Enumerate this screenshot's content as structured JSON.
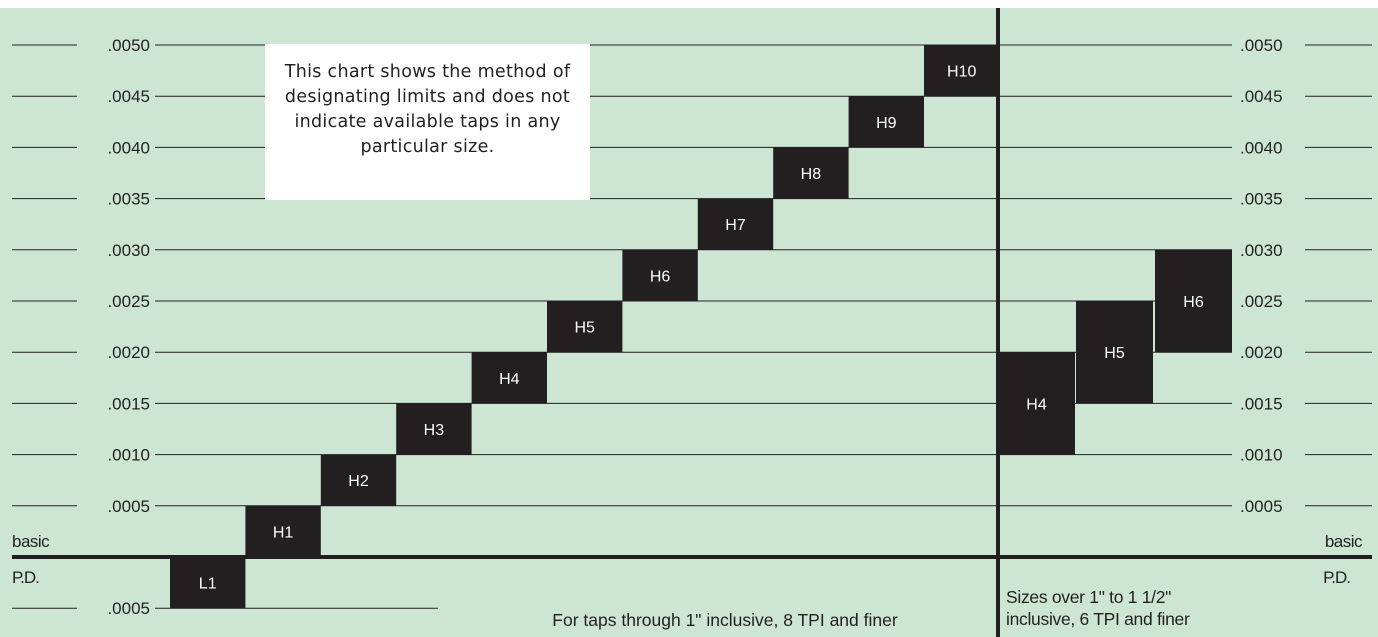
{
  "chart_data": {
    "type": "bar",
    "title": "",
    "note": "This chart shows the method of designating limits and does not indicate available taps in any particular size.",
    "ytick_labels": [
      ".0050",
      ".0045",
      ".0040",
      ".0035",
      ".0030",
      ".0025",
      ".0020",
      ".0015",
      ".0010",
      ".0005"
    ],
    "below_basic_label": ".0005",
    "basic_label_top": "basic",
    "basic_label_bottom": "P.D.",
    "ylim": [
      -0.0005,
      0.005
    ],
    "panels": [
      {
        "caption": "For taps through 1\" inclusive, 8 TPI and finer",
        "limits": [
          {
            "name": "L1",
            "low": -0.0005,
            "high": 0.0
          },
          {
            "name": "H1",
            "low": 0.0,
            "high": 0.0005
          },
          {
            "name": "H2",
            "low": 0.0005,
            "high": 0.001
          },
          {
            "name": "H3",
            "low": 0.001,
            "high": 0.0015
          },
          {
            "name": "H4",
            "low": 0.0015,
            "high": 0.002
          },
          {
            "name": "H5",
            "low": 0.002,
            "high": 0.0025
          },
          {
            "name": "H6",
            "low": 0.0025,
            "high": 0.003
          },
          {
            "name": "H7",
            "low": 0.003,
            "high": 0.0035
          },
          {
            "name": "H8",
            "low": 0.0035,
            "high": 0.004
          },
          {
            "name": "H9",
            "low": 0.004,
            "high": 0.0045
          },
          {
            "name": "H10",
            "low": 0.0045,
            "high": 0.005
          }
        ]
      },
      {
        "caption_lines": [
          "Sizes over 1\" to  1 1/2\"",
          "inclusive, 6 TPI and finer"
        ],
        "limits": [
          {
            "name": "H4",
            "low": 0.001,
            "high": 0.002
          },
          {
            "name": "H5",
            "low": 0.0015,
            "high": 0.0025
          },
          {
            "name": "H6",
            "low": 0.002,
            "high": 0.003
          }
        ]
      }
    ],
    "colors": {
      "background": "#cde6d3",
      "bar": "#231f20",
      "bar_text": "#ffffff",
      "line": "#231f20"
    }
  }
}
